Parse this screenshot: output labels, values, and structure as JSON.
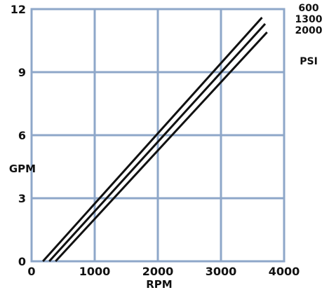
{
  "chart_data": {
    "type": "line",
    "title": "",
    "xlabel": "RPM",
    "ylabel": "GPM",
    "xlim": [
      0,
      4000
    ],
    "ylim": [
      0,
      12
    ],
    "xticks": [
      0,
      1000,
      2000,
      3000,
      4000
    ],
    "xtick_labels": [
      "0",
      "1000",
      "2000",
      "3000",
      "4000"
    ],
    "yticks": [
      0,
      3,
      6,
      9,
      12
    ],
    "ytick_labels": [
      "0",
      "3",
      "6",
      "9",
      "12"
    ],
    "grid": true,
    "legend_placement": "right",
    "legend_title": "PSI",
    "series": [
      {
        "name": "600",
        "points": [
          [
            180,
            0
          ],
          [
            3650,
            11.6
          ]
        ]
      },
      {
        "name": "1300",
        "points": [
          [
            280,
            0
          ],
          [
            3700,
            11.3
          ]
        ]
      },
      {
        "name": "2000",
        "points": [
          [
            380,
            0
          ],
          [
            3730,
            10.9
          ]
        ]
      }
    ]
  }
}
